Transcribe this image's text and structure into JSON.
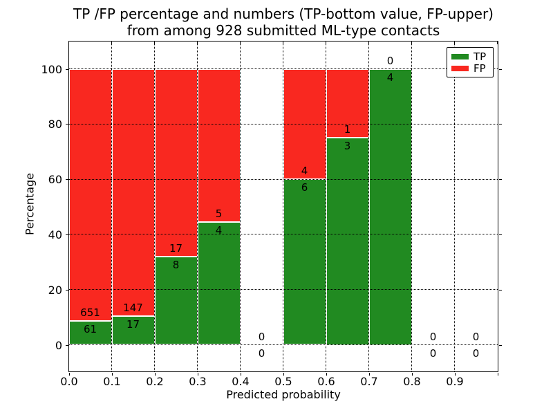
{
  "title": {
    "line1": "TP /FP percentage and numbers (TP-bottom value, FP-upper)",
    "line2": "from among 928 submitted ML-type contacts"
  },
  "axes": {
    "xlabel": "Predicted probability",
    "ylabel": "Percentage",
    "yticks": [
      0,
      20,
      40,
      60,
      80,
      100
    ],
    "ytick_labels": [
      "0",
      "20",
      "40",
      "60",
      "80",
      "100"
    ],
    "xticks": [
      0.0,
      0.1,
      0.2,
      0.3,
      0.4,
      0.5,
      0.6,
      0.7,
      0.8,
      0.9
    ],
    "xtick_labels": [
      "0.0",
      "0.1",
      "0.2",
      "0.3",
      "0.4",
      "0.5",
      "0.6",
      "0.7",
      "0.8",
      "0.9"
    ],
    "grid": "dotted"
  },
  "legend": {
    "position": "upper-right",
    "items": [
      {
        "label": "TP",
        "color": "#218a21"
      },
      {
        "label": "FP",
        "color": "#f92820"
      }
    ]
  },
  "chart_data": {
    "type": "bar",
    "stacked": true,
    "normalized": "each bin scaled to 100%",
    "title": "TP /FP percentage and numbers (TP-bottom value, FP-upper) from among 928 submitted ML-type contacts",
    "xlabel": "Predicted probability",
    "ylabel": "Percentage",
    "total_contacts": 928,
    "bin_width": 0.1,
    "bin_starts": [
      0.0,
      0.1,
      0.2,
      0.3,
      0.4,
      0.5,
      0.6,
      0.7,
      0.8,
      0.9
    ],
    "series": [
      {
        "name": "TP",
        "color": "#218a21",
        "counts": [
          61,
          17,
          8,
          4,
          0,
          6,
          3,
          4,
          0,
          0
        ]
      },
      {
        "name": "FP",
        "color": "#f92820",
        "counts": [
          651,
          147,
          17,
          5,
          0,
          4,
          1,
          0,
          0,
          0
        ]
      }
    ],
    "tp_percent_of_bin": [
      8.57,
      10.37,
      32.0,
      44.44,
      null,
      60.0,
      75.0,
      100.0,
      null,
      null
    ],
    "ylim_ticks": [
      0,
      100
    ]
  }
}
